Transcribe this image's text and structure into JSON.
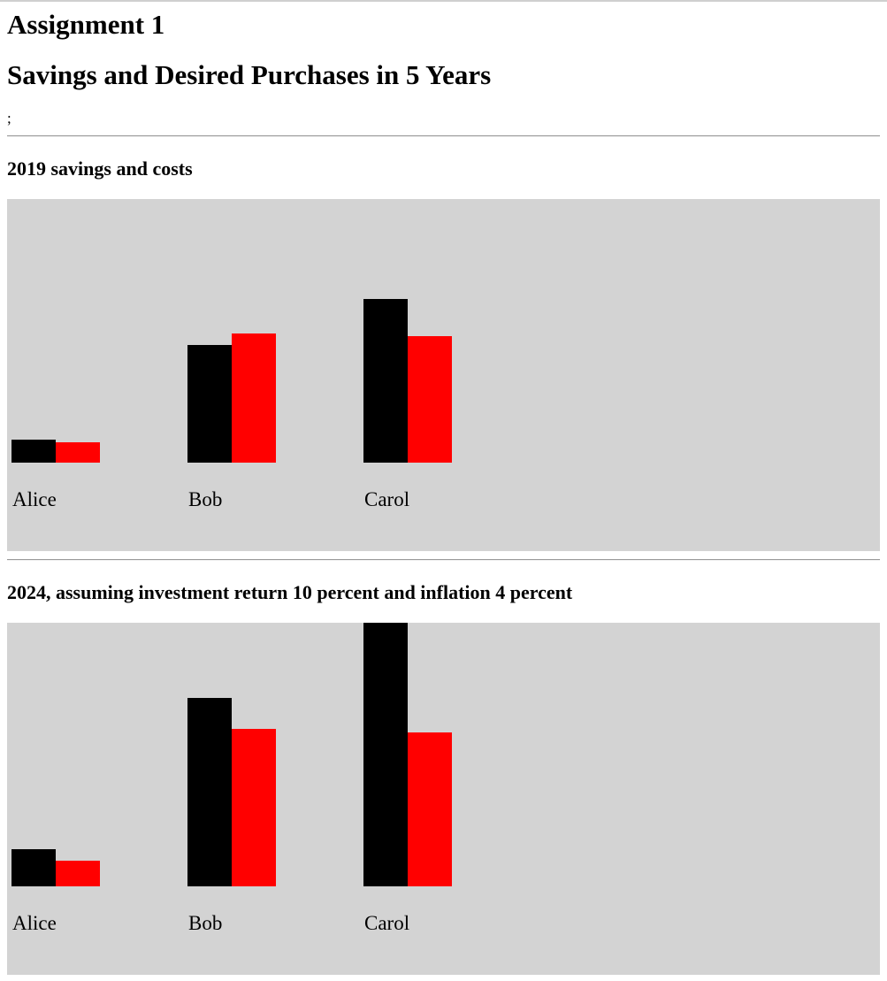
{
  "page": {
    "title": "Assignment 1",
    "subtitle": "Savings and Desired Purchases in 5 Years",
    "stray_text": ";"
  },
  "colors": {
    "savings": "#000000",
    "costs": "#ff0000",
    "chart_background": "#d3d3d3"
  },
  "chart_data": [
    {
      "type": "bar",
      "title": "2019 savings and costs",
      "categories": [
        "Alice",
        "Bob",
        "Carol"
      ],
      "series": [
        {
          "values": [
            26,
            133,
            185
          ]
        },
        {
          "values": [
            23,
            146,
            143
          ]
        }
      ],
      "ylim": [
        0,
        300
      ],
      "grid": false,
      "legend": "none"
    },
    {
      "type": "bar",
      "title": "2024, assuming investment return 10 percent and inflation 4 percent",
      "categories": [
        "Alice",
        "Bob",
        "Carol"
      ],
      "series": [
        {
          "values": [
            42,
            213,
            299
          ]
        },
        {
          "values": [
            29,
            178,
            174
          ]
        }
      ],
      "ylim": [
        0,
        300
      ],
      "grid": false,
      "legend": "none"
    }
  ]
}
